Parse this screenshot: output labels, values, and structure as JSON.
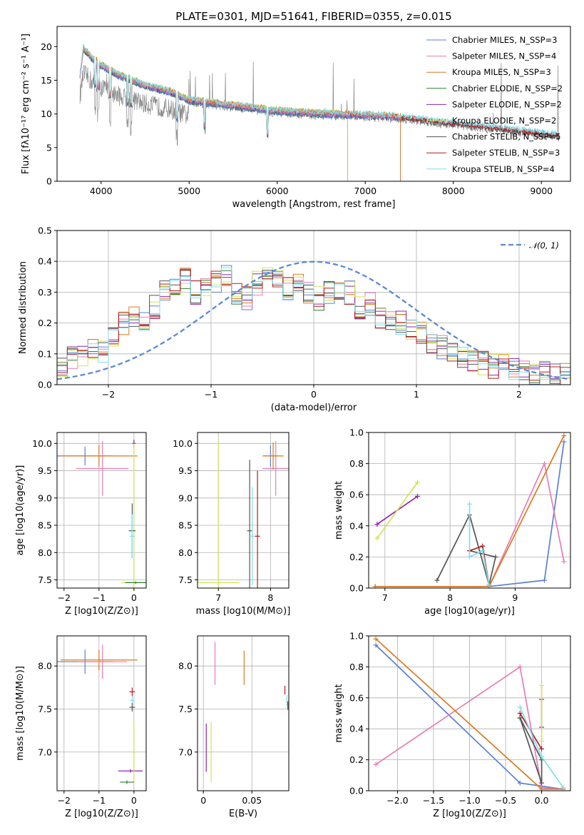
{
  "colors": {
    "series": [
      "#5b7fd6",
      "#e87cb3",
      "#d97b1e",
      "#2e7d32",
      "#8e24aa",
      "#d4e157",
      "#555555",
      "#b71c1c",
      "#80deea"
    ],
    "normal": "#5b8ad6",
    "grid": "#b0b0b0"
  },
  "chart_data": [
    {
      "id": "spectrum",
      "type": "line",
      "title": "PLATE=0301, MJD=51641, FIBERID=0355, z=0.015",
      "xlabel": "wavelength [Angstrom, rest frame]",
      "ylabel": "Flux [fλ10⁻¹⁷ erg cm⁻² s⁻¹ A⁻¹]",
      "xlim": [
        3500,
        9330
      ],
      "ylim": [
        0,
        23
      ],
      "xticks": [
        4000,
        5000,
        6000,
        7000,
        8000,
        9000
      ],
      "yticks": [
        0,
        5,
        10,
        15,
        20
      ],
      "grid": false,
      "legend_position": "top-right",
      "legend": [
        "Chabrier MILES, N_SSP=3",
        "Salpeter MILES, N_SSP=4",
        "Kroupa MILES, N_SSP=3",
        "Chabrier ELODIE, N_SSP=2",
        "Salpeter ELODIE, N_SSP=2",
        "Kroupa ELODIE, N_SSP=2",
        "Chabrier STELIB, N_SSP=5",
        "Salpeter STELIB, N_SSP=3",
        "Kroupa STELIB, N_SSP=4"
      ],
      "continuum_anchor": {
        "x": [
          3760,
          3800,
          3900,
          4000,
          4200,
          4500,
          4800,
          5000,
          5500,
          6000,
          6500,
          7000,
          7400
        ],
        "y": [
          15.5,
          19.5,
          18,
          17,
          15.5,
          14,
          13,
          11.8,
          11,
          10.2,
          9.8,
          9.6,
          9.3
        ]
      },
      "data_extent": {
        "observed": [
          3760,
          9200
        ],
        "MILES": [
          3760,
          7400
        ],
        "ELODIE": [
          3760,
          6800
        ]
      }
    },
    {
      "id": "residual-hist",
      "type": "line",
      "xlabel": "(data-model)/error",
      "ylabel": "Normed distribution",
      "xlim": [
        -2.5,
        2.5
      ],
      "ylim": [
        0,
        0.5
      ],
      "xticks": [
        -2,
        -1,
        0,
        1,
        2
      ],
      "yticks": [
        0,
        0.1,
        0.2,
        0.3,
        0.4,
        0.5
      ],
      "grid": true,
      "legend_position": "top-right",
      "legend": [
        "𝒩(0, 1)"
      ],
      "bins": 50,
      "series_bar_heights_sample": [
        0.06,
        0.09,
        0.1,
        0.12,
        0.11,
        0.15,
        0.2,
        0.22,
        0.2,
        0.25,
        0.3,
        0.33,
        0.35,
        0.3,
        0.32,
        0.34,
        0.36,
        0.3,
        0.28,
        0.33,
        0.37,
        0.34,
        0.31,
        0.33,
        0.3,
        0.28,
        0.3,
        0.31,
        0.3,
        0.25,
        0.26,
        0.22,
        0.21,
        0.2,
        0.18,
        0.17,
        0.14,
        0.12,
        0.1,
        0.09,
        0.08,
        0.07,
        0.06,
        0.06,
        0.05,
        0.05,
        0.04,
        0.04,
        0.03,
        0.03
      ]
    },
    {
      "id": "age-vs-Z",
      "type": "scatter",
      "xlabel": "Z [log10(Z/Z⊙)]",
      "ylabel": "age  [log10(age/yr)]",
      "xlim": [
        -2.2,
        0.35
      ],
      "ylim": [
        7.35,
        10.2
      ],
      "xticks": [
        -2,
        -1,
        0
      ],
      "yticks": [
        7.5,
        8.0,
        8.5,
        9.0,
        9.5,
        10.0
      ],
      "grid": true,
      "points": [
        {
          "series": 0,
          "x": -1.4,
          "y": 9.77,
          "xerr": 0.8,
          "yerr": 0.17
        },
        {
          "series": 1,
          "x": -0.9,
          "y": 9.54,
          "xerr": 0.75,
          "yerr": 0.5
        },
        {
          "series": 2,
          "x": -1.0,
          "y": 9.77,
          "xerr": 1.1,
          "yerr": 0.2
        },
        {
          "series": 4,
          "x": 0.0,
          "y": 10.0,
          "xerr": 0.05,
          "yerr": 0.07
        },
        {
          "series": 5,
          "x": 0.0,
          "y": 7.45,
          "xerr": 0.35,
          "yerr": 2.55
        },
        {
          "series": 6,
          "x": -0.05,
          "y": 8.4,
          "xerr": 0.1,
          "yerr": 0.5
        },
        {
          "series": 8,
          "x": -0.05,
          "y": 8.3,
          "xerr": 0.08,
          "yerr": 0.4
        },
        {
          "series": 3,
          "x": 0.05,
          "y": 7.45,
          "xerr": 0.3,
          "yerr": 0.02
        }
      ]
    },
    {
      "id": "age-vs-mass",
      "type": "scatter",
      "xlabel": "mass [log10(M/M⊙)]",
      "ylabel": "",
      "xlim": [
        6.6,
        8.35
      ],
      "ylim": [
        7.35,
        10.2
      ],
      "xticks": [
        7,
        8
      ],
      "yticks": [
        7.5,
        8.0,
        8.5,
        9.0,
        9.5,
        10.0
      ],
      "grid": true,
      "points": [
        {
          "series": 0,
          "x": 8.0,
          "y": 9.77,
          "xerr": 0.15,
          "yerr": 0.2
        },
        {
          "series": 1,
          "x": 8.1,
          "y": 9.54,
          "xerr": 0.25,
          "yerr": 0.5
        },
        {
          "series": 2,
          "x": 8.05,
          "y": 9.77,
          "xerr": 0.2,
          "yerr": 0.25
        },
        {
          "series": 5,
          "x": 7.0,
          "y": 7.45,
          "xerr": 0.4,
          "yerr": 2.6
        },
        {
          "series": 6,
          "x": 7.6,
          "y": 8.4,
          "xerr": 0.05,
          "yerr": 1.3
        },
        {
          "series": 7,
          "x": 7.75,
          "y": 8.3,
          "xerr": 0.05,
          "yerr": 1.2
        },
        {
          "series": 8,
          "x": 7.65,
          "y": 8.3,
          "xerr": 0.05,
          "yerr": 0.9
        }
      ]
    },
    {
      "id": "weight-vs-age",
      "type": "line",
      "xlabel": "age  [log10(age/yr)]",
      "ylabel": "mass weight",
      "xlim": [
        6.75,
        9.85
      ],
      "ylim": [
        0,
        1.0
      ],
      "xticks": [
        7,
        8,
        9
      ],
      "yticks": [
        0.0,
        0.2,
        0.4,
        0.6,
        0.8,
        1.0
      ],
      "grid": true,
      "series": [
        {
          "series": 0,
          "x": [
            6.85,
            8.6,
            9.45,
            9.75
          ],
          "y": [
            0.01,
            0.01,
            0.05,
            0.94
          ]
        },
        {
          "series": 1,
          "x": [
            6.85,
            8.6,
            9.45,
            9.75
          ],
          "y": [
            0.01,
            0.01,
            0.8,
            0.17
          ]
        },
        {
          "series": 2,
          "x": [
            6.85,
            8.6,
            9.75
          ],
          "y": [
            0.01,
            0.01,
            0.98
          ]
        },
        {
          "series": 4,
          "x": [
            6.88,
            7.5
          ],
          "y": [
            0.41,
            0.59
          ]
        },
        {
          "series": 5,
          "x": [
            6.88,
            7.5
          ],
          "y": [
            0.32,
            0.68
          ]
        },
        {
          "series": 6,
          "x": [
            7.8,
            8.3,
            8.6,
            8.7,
            8.3
          ],
          "y": [
            0.05,
            0.47,
            0.02,
            0.2,
            0.24
          ]
        },
        {
          "series": 7,
          "x": [
            8.3,
            8.5,
            8.6
          ],
          "y": [
            0.24,
            0.27,
            0.02
          ]
        },
        {
          "series": 8,
          "x": [
            8.3,
            8.3,
            8.5,
            8.6
          ],
          "y": [
            0.54,
            0.2,
            0.24,
            0.02
          ]
        }
      ]
    },
    {
      "id": "mass-vs-Z",
      "type": "scatter",
      "xlabel": "Z [log10(Z/Z⊙)]",
      "ylabel": "mass [log10(M/M⊙)]",
      "xlim": [
        -2.2,
        0.35
      ],
      "ylim": [
        6.55,
        8.35
      ],
      "xticks": [
        -2,
        -1,
        0
      ],
      "yticks": [
        7.0,
        7.5,
        8.0
      ],
      "grid": true,
      "points": [
        {
          "series": 0,
          "x": -1.4,
          "y": 8.05,
          "xerr": 0.8,
          "yerr": 0.14
        },
        {
          "series": 1,
          "x": -0.9,
          "y": 8.05,
          "xerr": 0.7,
          "yerr": 0.2
        },
        {
          "series": 2,
          "x": -1.0,
          "y": 8.07,
          "xerr": 1.1,
          "yerr": 0.12
        },
        {
          "series": 7,
          "x": -0.05,
          "y": 7.7,
          "xerr": 0.08,
          "yerr": 0.05
        },
        {
          "series": 8,
          "x": -0.05,
          "y": 7.6,
          "xerr": 0.05,
          "yerr": 0.05
        },
        {
          "series": 6,
          "x": -0.05,
          "y": 7.52,
          "xerr": 0.08,
          "yerr": 0.05
        },
        {
          "series": 4,
          "x": -0.1,
          "y": 6.78,
          "xerr": 0.35,
          "yerr": 0.02
        },
        {
          "series": 5,
          "x": 0.0,
          "y": 7.0,
          "xerr": 0.05,
          "yerr": 0.35
        },
        {
          "series": 3,
          "x": -0.2,
          "y": 6.65,
          "xerr": 0.2,
          "yerr": 0.02
        }
      ]
    },
    {
      "id": "mass-vs-EBV",
      "type": "scatter",
      "xlabel": "E(B-V)",
      "ylabel": "",
      "xlim": [
        -0.006,
        0.088
      ],
      "ylim": [
        6.55,
        8.35
      ],
      "xticks": [
        0.0,
        0.05
      ],
      "yticks": [
        7.0,
        7.5,
        8.0
      ],
      "grid": true,
      "points": [
        {
          "series": 4,
          "x": 0.003,
          "y": 7.05,
          "xerr": 0,
          "yerr": 0.28
        },
        {
          "series": 5,
          "x": 0.008,
          "y": 7.0,
          "xerr": 0,
          "yerr": 0.35
        },
        {
          "series": 1,
          "x": 0.012,
          "y": 8.03,
          "xerr": 0,
          "yerr": 0.25
        },
        {
          "series": 2,
          "x": 0.042,
          "y": 7.98,
          "xerr": 0,
          "yerr": 0.2
        },
        {
          "series": 7,
          "x": 0.084,
          "y": 7.72,
          "xerr": 0,
          "yerr": 0.05
        },
        {
          "series": 8,
          "x": 0.086,
          "y": 7.6,
          "xerr": 0,
          "yerr": 0.06
        },
        {
          "series": 6,
          "x": 0.087,
          "y": 7.54,
          "xerr": 0,
          "yerr": 0.05
        }
      ]
    },
    {
      "id": "weight-vs-Z",
      "type": "line",
      "xlabel": "Z [log10(Z/Z⊙)]",
      "ylabel": "mass weight",
      "xlim": [
        -2.4,
        0.4
      ],
      "ylim": [
        0,
        1.0
      ],
      "xticks": [
        -2.0,
        -1.5,
        -1.0,
        -0.5,
        0.0
      ],
      "yticks": [
        0.0,
        0.2,
        0.4,
        0.6,
        0.8,
        1.0
      ],
      "grid": true,
      "series": [
        {
          "series": 0,
          "x": [
            -2.3,
            -0.3,
            0.3
          ],
          "y": [
            0.94,
            0.05,
            0.01
          ]
        },
        {
          "series": 1,
          "x": [
            -2.3,
            -0.3,
            0.0,
            0.3
          ],
          "y": [
            0.17,
            0.8,
            0.02,
            0.01
          ]
        },
        {
          "series": 2,
          "x": [
            -2.3,
            0.0,
            0.3
          ],
          "y": [
            0.98,
            0.01,
            0.01
          ]
        },
        {
          "series": 4,
          "x": [
            0.0,
            0.0
          ],
          "y": [
            0.41,
            0.59
          ]
        },
        {
          "series": 5,
          "x": [
            0.0,
            0.0
          ],
          "y": [
            0.32,
            0.68
          ]
        },
        {
          "series": 6,
          "x": [
            -0.3,
            0.0,
            0.0,
            -0.3
          ],
          "y": [
            0.47,
            0.2,
            0.05,
            0.47
          ]
        },
        {
          "series": 7,
          "x": [
            -0.3,
            0.0
          ],
          "y": [
            0.5,
            0.27
          ]
        },
        {
          "series": 8,
          "x": [
            -0.3,
            0.0,
            0.3
          ],
          "y": [
            0.54,
            0.22,
            0.02
          ]
        }
      ]
    }
  ]
}
